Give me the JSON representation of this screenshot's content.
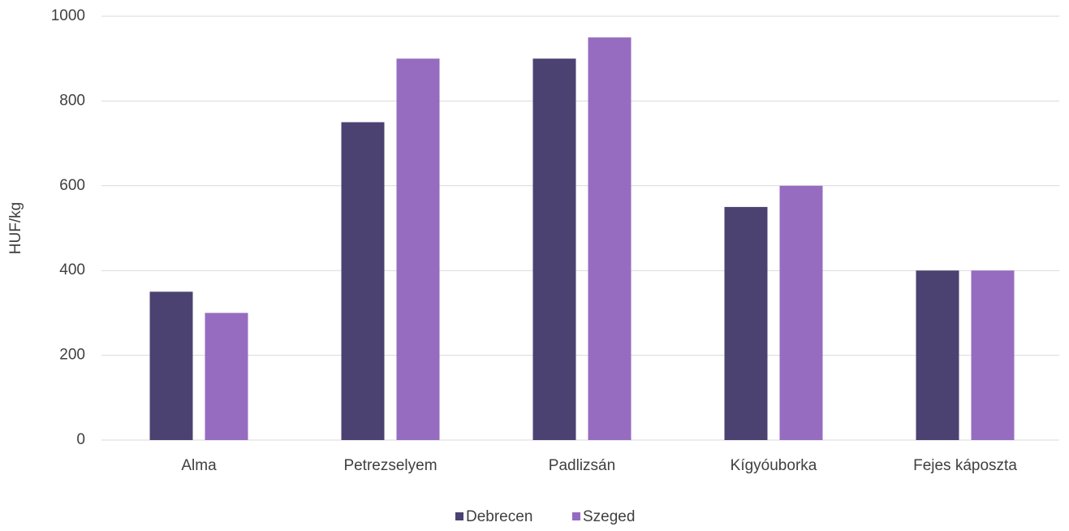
{
  "chart_data": {
    "type": "bar",
    "y_label": "HUF/kg",
    "categories": [
      "Alma",
      "Petrezselyem",
      "Padlizsán",
      "Kígyóuborka",
      "Fejes káposzta"
    ],
    "series": [
      {
        "name": "Debrecen",
        "color": "#4b4272",
        "values": [
          350,
          750,
          900,
          550,
          400
        ]
      },
      {
        "name": "Szeged",
        "color": "#966cc0",
        "values": [
          300,
          900,
          950,
          600,
          400
        ]
      }
    ],
    "ylim": [
      0,
      1000
    ],
    "yticks": [
      0,
      200,
      400,
      600,
      800,
      1000
    ],
    "grid": true,
    "legend": "bottom"
  }
}
